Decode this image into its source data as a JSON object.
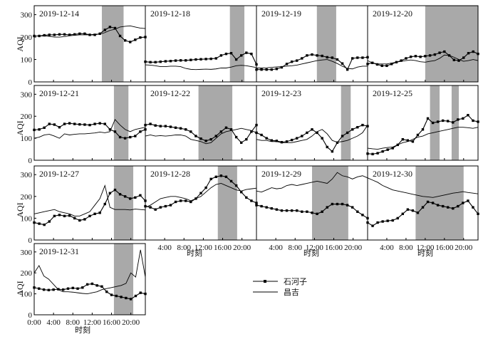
{
  "figure": {
    "ylabel": "AQI",
    "xlabel": "时刻",
    "legend": [
      {
        "name": "石河子",
        "marker": "filled-square",
        "color": "#000000"
      },
      {
        "name": "昌吉",
        "marker": "none",
        "color": "#000000"
      }
    ],
    "shade_color": "#a9a9a9",
    "y_ticks": [
      "0",
      "100",
      "200",
      "300"
    ],
    "x_ticks_full": [
      "0:00",
      "4:00",
      "8:00",
      "12:00",
      "16:00",
      "20:00"
    ],
    "x_ticks_partial": [
      "4:00",
      "8:00",
      "12:00",
      "16:00",
      "20:00"
    ]
  },
  "chart_data": [
    {
      "type": "line",
      "title": "2019-12-14",
      "x_range": [
        0,
        23
      ],
      "ylim": [
        0,
        340
      ],
      "shaded": [
        [
          14,
          18.5
        ]
      ],
      "series": [
        {
          "name": "石河子",
          "values": [
            205,
            205,
            208,
            210,
            210,
            212,
            212,
            210,
            212,
            215,
            215,
            210,
            210,
            215,
            232,
            245,
            240,
            205,
            185,
            178,
            188,
            198,
            200
          ]
        },
        {
          "name": "昌吉",
          "values": [
            205,
            205,
            205,
            203,
            200,
            200,
            202,
            206,
            208,
            210,
            210,
            210,
            213,
            213,
            220,
            230,
            235,
            245,
            248,
            250,
            245,
            240,
            238
          ]
        }
      ]
    },
    {
      "type": "line",
      "title": "2019-12-18",
      "x_range": [
        0,
        23
      ],
      "ylim": [
        0,
        340
      ],
      "shaded": [
        [
          17.5,
          20.5
        ]
      ],
      "series": [
        {
          "name": "石河子",
          "values": [
            90,
            88,
            88,
            90,
            92,
            93,
            95,
            96,
            96,
            98,
            100,
            101,
            102,
            103,
            105,
            118,
            125,
            128,
            100,
            118,
            130,
            125,
            78
          ]
        },
        {
          "name": "昌吉",
          "values": [
            76,
            75,
            72,
            68,
            68,
            70,
            70,
            68,
            60,
            56,
            55,
            56,
            57,
            56,
            58,
            62,
            62,
            66,
            72,
            74,
            72,
            68,
            64
          ]
        }
      ]
    },
    {
      "type": "line",
      "title": "2019-12-19",
      "x_range": [
        0,
        23
      ],
      "ylim": [
        0,
        340
      ],
      "shaded": [
        [
          12.5,
          16.5
        ]
      ],
      "series": [
        {
          "name": "石河子",
          "values": [
            55,
            55,
            55,
            55,
            58,
            65,
            80,
            90,
            95,
            105,
            118,
            122,
            118,
            116,
            110,
            108,
            100,
            82,
            55,
            105,
            108,
            108,
            110
          ]
        },
        {
          "name": "昌吉",
          "values": [
            62,
            62,
            63,
            65,
            67,
            68,
            70,
            72,
            75,
            80,
            85,
            90,
            95,
            98,
            100,
            92,
            82,
            70,
            60,
            58,
            66,
            70,
            70
          ]
        }
      ]
    },
    {
      "type": "line",
      "title": "2019-12-20",
      "x_range": [
        0,
        23
      ],
      "ylim": [
        0,
        340
      ],
      "shaded": [
        [
          12,
          23
        ]
      ],
      "series": [
        {
          "name": "石河子",
          "values": [
            80,
            85,
            78,
            72,
            72,
            80,
            88,
            95,
            105,
            112,
            115,
            112,
            115,
            118,
            122,
            130,
            135,
            118,
            98,
            95,
            108,
            128,
            135,
            125
          ]
        },
        {
          "name": "昌吉",
          "values": [
            95,
            85,
            80,
            80,
            80,
            84,
            88,
            92,
            95,
            98,
            95,
            90,
            88,
            92,
            95,
            105,
            120,
            118,
            110,
            100,
            92,
            95,
            100,
            95
          ]
        }
      ]
    },
    {
      "type": "line",
      "title": "2019-12-21",
      "x_range": [
        0,
        23
      ],
      "ylim": [
        0,
        340
      ],
      "shaded": [
        [
          16.5,
          19.5
        ]
      ],
      "series": [
        {
          "name": "石河子",
          "values": [
            138,
            140,
            148,
            165,
            162,
            150,
            165,
            168,
            165,
            163,
            162,
            160,
            165,
            168,
            165,
            140,
            130,
            105,
            100,
            105,
            110,
            130,
            140
          ]
        },
        {
          "name": "昌吉",
          "values": [
            100,
            105,
            115,
            118,
            110,
            100,
            120,
            115,
            118,
            120,
            120,
            122,
            124,
            128,
            125,
            130,
            185,
            160,
            140,
            130,
            140,
            145,
            150
          ]
        }
      ]
    },
    {
      "type": "line",
      "title": "2019-12-22",
      "x_range": [
        0,
        23
      ],
      "ylim": [
        0,
        340
      ],
      "shaded": [
        [
          11,
          18
        ]
      ],
      "series": [
        {
          "name": "石河子",
          "values": [
            160,
            165,
            158,
            155,
            155,
            152,
            148,
            145,
            140,
            130,
            110,
            98,
            88,
            95,
            110,
            130,
            148,
            140,
            105,
            80,
            95,
            130,
            160
          ]
        },
        {
          "name": "昌吉",
          "values": [
            110,
            115,
            110,
            112,
            110,
            112,
            115,
            115,
            110,
            95,
            90,
            85,
            75,
            80,
            100,
            120,
            130,
            135,
            140,
            145,
            140,
            135,
            125
          ]
        }
      ]
    },
    {
      "type": "line",
      "title": "2019-12-23",
      "x_range": [
        0,
        23
      ],
      "ylim": [
        0,
        340
      ],
      "shaded": [
        [
          17.5,
          19.5
        ]
      ],
      "series": [
        {
          "name": "石河子",
          "values": [
            125,
            115,
            100,
            90,
            88,
            82,
            85,
            92,
            100,
            110,
            125,
            140,
            125,
            100,
            60,
            40,
            80,
            110,
            125,
            140,
            150,
            160,
            155
          ]
        },
        {
          "name": "昌吉",
          "values": [
            95,
            90,
            90,
            85,
            85,
            80,
            80,
            80,
            85,
            90,
            95,
            110,
            130,
            140,
            120,
            90,
            82,
            85,
            90,
            100,
            110,
            125,
            160
          ]
        }
      ]
    },
    {
      "type": "line",
      "title": "2019-12-25",
      "x_range": [
        0,
        23
      ],
      "ylim": [
        0,
        340
      ],
      "shaded": [
        [
          13,
          15
        ],
        [
          17.5,
          19
        ]
      ],
      "series": [
        {
          "name": "石河子",
          "values": [
            30,
            28,
            32,
            40,
            48,
            55,
            70,
            95,
            90,
            85,
            115,
            140,
            190,
            170,
            175,
            180,
            178,
            172,
            185,
            190,
            205,
            180,
            175
          ]
        },
        {
          "name": "昌吉",
          "values": [
            55,
            52,
            50,
            55,
            58,
            60,
            70,
            80,
            85,
            95,
            105,
            110,
            120,
            125,
            130,
            135,
            140,
            145,
            150,
            150,
            148,
            145,
            150
          ]
        }
      ]
    },
    {
      "type": "line",
      "title": "2019-12-27",
      "x_range": [
        0,
        23
      ],
      "ylim": [
        0,
        340
      ],
      "shaded": [
        [
          16.5,
          20.5
        ]
      ],
      "series": [
        {
          "name": "石河子",
          "values": [
            80,
            75,
            70,
            85,
            110,
            115,
            110,
            112,
            100,
            90,
            95,
            110,
            120,
            125,
            165,
            215,
            230,
            210,
            200,
            190,
            195,
            205,
            180
          ]
        },
        {
          "name": "昌吉",
          "values": [
            120,
            125,
            130,
            135,
            140,
            130,
            125,
            120,
            110,
            110,
            120,
            130,
            160,
            190,
            250,
            150,
            140,
            140,
            140,
            138,
            142,
            140,
            138
          ]
        }
      ]
    },
    {
      "type": "line",
      "title": "2019-12-28",
      "x_range": [
        0,
        23
      ],
      "ylim": [
        0,
        340
      ],
      "shaded": [
        [
          15,
          19
        ]
      ],
      "series": [
        {
          "name": "石河子",
          "values": [
            155,
            150,
            140,
            150,
            155,
            160,
            175,
            180,
            180,
            175,
            190,
            215,
            240,
            280,
            290,
            295,
            290,
            270,
            250,
            220,
            195,
            180,
            170
          ]
        },
        {
          "name": "昌吉",
          "values": [
            150,
            160,
            175,
            190,
            195,
            200,
            200,
            195,
            190,
            180,
            190,
            200,
            220,
            240,
            255,
            260,
            250,
            240,
            230,
            225,
            232,
            235,
            238
          ]
        }
      ]
    },
    {
      "type": "line",
      "title": "2019-12-29",
      "x_range": [
        0,
        23
      ],
      "ylim": [
        0,
        340
      ],
      "shaded": [
        [
          11.5,
          19
        ]
      ],
      "series": [
        {
          "name": "石河子",
          "values": [
            160,
            155,
            150,
            145,
            140,
            135,
            135,
            135,
            135,
            130,
            130,
            125,
            120,
            130,
            150,
            165,
            165,
            165,
            160,
            150,
            130,
            115,
            100
          ]
        },
        {
          "name": "昌吉",
          "values": [
            225,
            220,
            230,
            240,
            235,
            238,
            250,
            255,
            250,
            255,
            260,
            265,
            270,
            265,
            260,
            280,
            310,
            295,
            290,
            280,
            290,
            295,
            285
          ]
        }
      ]
    },
    {
      "type": "line",
      "title": "2019-12-30",
      "x_range": [
        0,
        23
      ],
      "ylim": [
        0,
        340
      ],
      "shaded": [
        [
          10,
          20
        ]
      ],
      "series": [
        {
          "name": "石河子",
          "values": [
            80,
            65,
            80,
            85,
            88,
            90,
            100,
            120,
            140,
            135,
            125,
            150,
            175,
            170,
            160,
            155,
            150,
            145,
            155,
            170,
            180,
            150,
            120
          ]
        },
        {
          "name": "昌吉",
          "values": [
            285,
            275,
            265,
            250,
            240,
            230,
            225,
            220,
            215,
            210,
            205,
            200,
            198,
            195,
            200,
            205,
            210,
            215,
            218,
            222,
            218,
            215,
            212
          ]
        }
      ]
    },
    {
      "type": "line",
      "title": "2019-12-31",
      "x_range": [
        0,
        23
      ],
      "ylim": [
        0,
        340
      ],
      "shaded": [
        [
          16.5,
          20.5
        ]
      ],
      "series": [
        {
          "name": "石河子",
          "values": [
            130,
            125,
            120,
            118,
            120,
            122,
            120,
            125,
            128,
            125,
            130,
            145,
            148,
            140,
            135,
            110,
            95,
            90,
            85,
            80,
            75,
            90,
            105,
            100
          ]
        },
        {
          "name": "昌吉",
          "values": [
            200,
            235,
            185,
            170,
            145,
            120,
            110,
            110,
            108,
            105,
            102,
            100,
            105,
            110,
            120,
            125,
            130,
            135,
            140,
            150,
            200,
            180,
            310,
            180
          ]
        }
      ]
    }
  ]
}
